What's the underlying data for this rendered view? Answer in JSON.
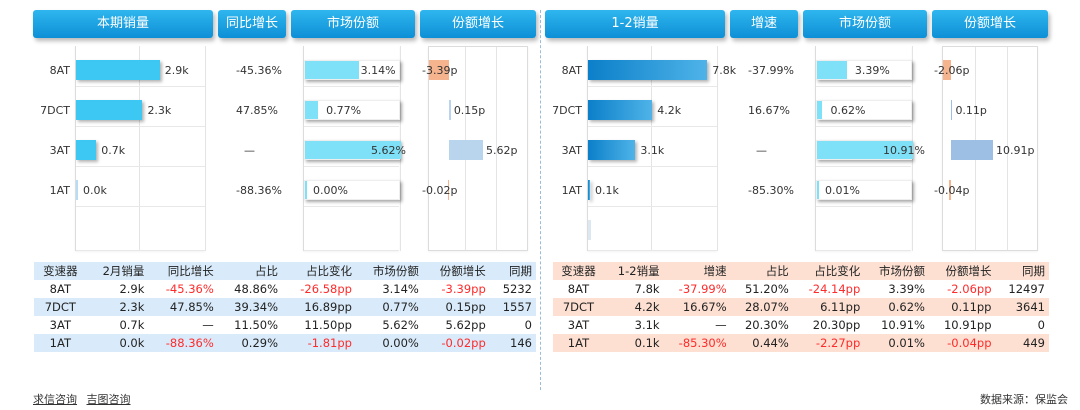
{
  "left": {
    "headers": [
      "本期销量",
      "同比增长",
      "市场份额",
      "份额增长"
    ],
    "table_header": [
      "变速器",
      "2月销量",
      "同比增长",
      "占比",
      "占比变化",
      "市场份额",
      "份额增长",
      "同期"
    ],
    "table_rows": [
      [
        "8AT",
        "2.9k",
        "-45.36%",
        "48.86%",
        "-26.58pp",
        "3.14%",
        "-3.39pp",
        "5232"
      ],
      [
        "7DCT",
        "2.3k",
        "47.85%",
        "39.34%",
        "16.89pp",
        "0.77%",
        "0.15pp",
        "1557"
      ],
      [
        "3AT",
        "0.7k",
        "—",
        "11.50%",
        "11.50pp",
        "5.62%",
        "5.62pp",
        "0"
      ],
      [
        "1AT",
        "0.0k",
        "-88.36%",
        "0.29%",
        "-1.81pp",
        "0.00%",
        "-0.02pp",
        "146"
      ]
    ]
  },
  "right": {
    "headers": [
      "1-2销量",
      "增速",
      "市场份额",
      "份额增长"
    ],
    "table_header": [
      "变速器",
      "1-2销量",
      "增速",
      "占比",
      "占比变化",
      "市场份额",
      "份额增长",
      "同期"
    ],
    "table_rows": [
      [
        "8AT",
        "7.8k",
        "-37.99%",
        "51.20%",
        "-24.14pp",
        "3.39%",
        "-2.06pp",
        "12497"
      ],
      [
        "7DCT",
        "4.2k",
        "16.67%",
        "28.07%",
        "6.11pp",
        "0.62%",
        "0.11pp",
        "3641"
      ],
      [
        "3AT",
        "3.1k",
        "—",
        "20.30%",
        "20.30pp",
        "10.91%",
        "10.91pp",
        "0"
      ],
      [
        "1AT",
        "0.1k",
        "-85.30%",
        "0.44%",
        "-2.27pp",
        "0.01%",
        "-0.04pp",
        "449"
      ]
    ]
  },
  "colors": {
    "header": "#1a9fe0",
    "volume_bar_left": "#3cc8f2",
    "volume_bar_right": "#0b7fc9",
    "share_fill": "#7fe1f7",
    "growth_neg": "#f5b48e",
    "growth_pos": "#b9d5ee",
    "growth_pos_right": "#9dbfe4",
    "table_left_stripe": "#d9ebfa",
    "table_right_stripe": "#fde0d2",
    "negative_text": "#ff2b2b"
  },
  "chart_data": [
    {
      "type": "bar",
      "orientation": "horizontal",
      "title": "本期销量",
      "categories": [
        "8AT",
        "7DCT",
        "3AT",
        "1AT"
      ],
      "values": [
        2.9,
        2.3,
        0.7,
        0.0
      ],
      "value_labels": [
        "2.9k",
        "2.3k",
        "0.7k",
        "0.0k"
      ],
      "unit": "k",
      "xlim": [
        0,
        4.5
      ],
      "series": [
        {
          "values": [
            2.9,
            2.3,
            0.7,
            0.0
          ]
        }
      ]
    },
    {
      "type": "table",
      "title": "同比增长",
      "categories": [
        "8AT",
        "7DCT",
        "3AT",
        "1AT"
      ],
      "value_labels": [
        "-45.36%",
        "47.85%",
        "—",
        "-88.36%"
      ]
    },
    {
      "type": "bar",
      "orientation": "horizontal",
      "title": "市场份额",
      "categories": [
        "8AT",
        "7DCT",
        "3AT",
        "1AT"
      ],
      "values": [
        3.14,
        0.77,
        5.62,
        0.0
      ],
      "value_labels": [
        "3.14%",
        "0.77%",
        "5.62%",
        "0.00%"
      ],
      "unit": "%",
      "xlim": [
        0,
        5.62
      ]
    },
    {
      "type": "bar",
      "orientation": "horizontal",
      "title": "份额增长",
      "categories": [
        "8AT",
        "7DCT",
        "3AT",
        "1AT"
      ],
      "values": [
        -3.39,
        0.15,
        5.62,
        -0.02
      ],
      "value_labels": [
        "-3.39p",
        "0.15p",
        "5.62p",
        "-0.02p"
      ],
      "unit": "p",
      "xlim": [
        -3.39,
        5.62
      ]
    },
    {
      "type": "bar",
      "orientation": "horizontal",
      "title": "1-2销量",
      "categories": [
        "8AT",
        "7DCT",
        "3AT",
        "1AT"
      ],
      "values": [
        7.8,
        4.2,
        3.1,
        0.1
      ],
      "value_labels": [
        "7.8k",
        "4.2k",
        "3.1k",
        "0.1k"
      ],
      "unit": "k",
      "xlim": [
        0,
        8.5
      ]
    },
    {
      "type": "table",
      "title": "增速",
      "categories": [
        "8AT",
        "7DCT",
        "3AT",
        "1AT"
      ],
      "value_labels": [
        "-37.99%",
        "16.67%",
        "—",
        "-85.30%"
      ]
    },
    {
      "type": "bar",
      "orientation": "horizontal",
      "title": "市场份额",
      "categories": [
        "8AT",
        "7DCT",
        "3AT",
        "1AT"
      ],
      "values": [
        3.39,
        0.62,
        10.91,
        0.01
      ],
      "value_labels": [
        "3.39%",
        "0.62%",
        "10.91%",
        "0.01%"
      ],
      "unit": "%",
      "xlim": [
        0,
        10.91
      ]
    },
    {
      "type": "bar",
      "orientation": "horizontal",
      "title": "份额增长",
      "categories": [
        "8AT",
        "7DCT",
        "3AT",
        "1AT"
      ],
      "values": [
        -2.06,
        0.11,
        10.91,
        -0.04
      ],
      "value_labels": [
        "-2.06p",
        "0.11p",
        "10.91p",
        "-0.04p"
      ],
      "unit": "p",
      "xlim": [
        -2.06,
        10.91
      ]
    }
  ],
  "footer": {
    "link1": "求信咨询",
    "link2": "吉图咨询",
    "source": "数据来源：保监会"
  }
}
